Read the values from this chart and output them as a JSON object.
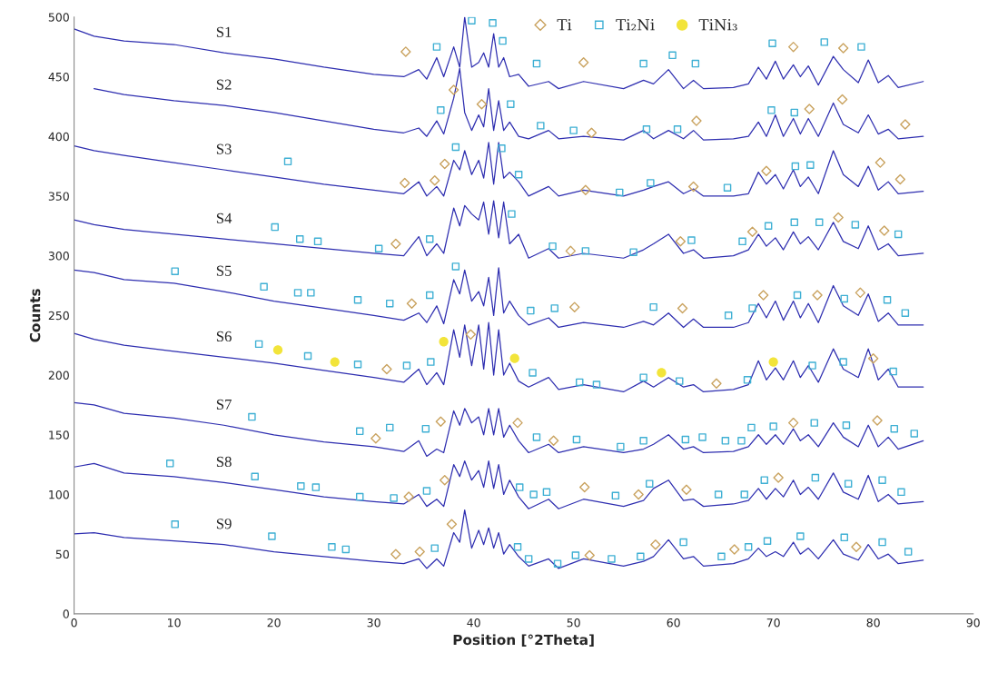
{
  "chart_data": {
    "type": "line",
    "xlabel": "Position [°2Theta]",
    "ylabel": "Counts",
    "xlim": [
      0,
      90
    ],
    "xticks": [
      0,
      10,
      20,
      30,
      40,
      50,
      60,
      70,
      80,
      90
    ],
    "ylim": [
      0,
      500
    ],
    "yticks": [
      0,
      50,
      100,
      150,
      200,
      250,
      300,
      350,
      400,
      450,
      500
    ],
    "grid": false,
    "legend": "top",
    "x": [
      0,
      2,
      5,
      10,
      15,
      20,
      25,
      30,
      33,
      34.5,
      35.3,
      36.3,
      37,
      38,
      38.6,
      39.1,
      39.8,
      40.5,
      41,
      41.5,
      42,
      42.5,
      43,
      43.6,
      44.5,
      45.5,
      47.5,
      48.5,
      51,
      55,
      57,
      58,
      59.5,
      61,
      62,
      63,
      66,
      67.5,
      68.5,
      69.3,
      70.2,
      71,
      72,
      72.7,
      73.5,
      74.5,
      76,
      77,
      78.5,
      79.5,
      80.5,
      81.5,
      82.5,
      85
    ],
    "series": [
      {
        "name": "S1",
        "color": "#2e2eb0",
        "values": [
          490,
          484,
          480,
          477,
          470,
          465,
          458,
          452,
          450,
          456,
          448,
          466,
          450,
          475,
          458,
          500,
          458,
          462,
          470,
          458,
          486,
          458,
          466,
          450,
          452,
          442,
          446,
          440,
          446,
          440,
          447,
          444,
          456,
          440,
          447,
          440,
          441,
          444,
          458,
          448,
          463,
          448,
          460,
          450,
          459,
          443,
          467,
          456,
          445,
          464,
          445,
          451,
          441,
          446
        ]
      },
      {
        "name": "S2",
        "color": "#2e2eb0",
        "values": [
          null,
          440,
          435,
          430,
          426,
          420,
          413,
          406,
          403,
          407,
          400,
          413,
          402,
          432,
          457,
          420,
          405,
          418,
          408,
          440,
          405,
          430,
          405,
          412,
          400,
          398,
          405,
          398,
          400,
          397,
          405,
          398,
          405,
          398,
          405,
          397,
          398,
          400,
          412,
          400,
          418,
          400,
          415,
          402,
          415,
          400,
          428,
          410,
          403,
          418,
          402,
          406,
          398,
          400
        ]
      },
      {
        "name": "S3",
        "color": "#2e2eb0",
        "values": [
          392,
          388,
          384,
          378,
          372,
          366,
          360,
          355,
          352,
          362,
          350,
          358,
          350,
          380,
          372,
          388,
          368,
          380,
          365,
          395,
          360,
          395,
          365,
          370,
          362,
          350,
          358,
          350,
          355,
          350,
          355,
          358,
          362,
          352,
          356,
          350,
          350,
          352,
          370,
          360,
          368,
          356,
          372,
          358,
          366,
          352,
          388,
          368,
          358,
          375,
          355,
          362,
          352,
          354
        ]
      },
      {
        "name": "S4",
        "color": "#2e2eb0",
        "values": [
          330,
          326,
          322,
          318,
          314,
          310,
          306,
          302,
          300,
          316,
          300,
          310,
          302,
          340,
          325,
          342,
          335,
          330,
          345,
          318,
          346,
          315,
          345,
          310,
          318,
          298,
          306,
          298,
          302,
          298,
          305,
          310,
          318,
          302,
          305,
          298,
          300,
          305,
          318,
          308,
          315,
          305,
          320,
          310,
          316,
          305,
          328,
          312,
          306,
          325,
          305,
          310,
          300,
          302
        ]
      },
      {
        "name": "S5",
        "color": "#2e2eb0",
        "values": [
          288,
          286,
          280,
          277,
          270,
          262,
          256,
          250,
          246,
          252,
          244,
          258,
          243,
          280,
          268,
          288,
          262,
          270,
          258,
          282,
          250,
          290,
          252,
          262,
          250,
          242,
          248,
          240,
          244,
          240,
          245,
          242,
          252,
          240,
          247,
          240,
          240,
          244,
          260,
          248,
          262,
          246,
          262,
          248,
          260,
          244,
          275,
          258,
          250,
          268,
          245,
          252,
          242,
          242
        ]
      },
      {
        "name": "S6",
        "color": "#2e2eb0",
        "values": [
          235,
          230,
          225,
          220,
          215,
          210,
          204,
          198,
          194,
          205,
          192,
          202,
          192,
          238,
          215,
          242,
          208,
          242,
          205,
          244,
          200,
          238,
          200,
          210,
          195,
          190,
          198,
          188,
          192,
          186,
          195,
          190,
          198,
          190,
          192,
          186,
          188,
          192,
          212,
          196,
          206,
          196,
          212,
          198,
          208,
          194,
          222,
          205,
          198,
          222,
          196,
          205,
          190,
          190
        ]
      },
      {
        "name": "S7",
        "color": "#2e2eb0",
        "values": [
          177,
          175,
          168,
          164,
          158,
          150,
          144,
          140,
          136,
          145,
          132,
          138,
          135,
          170,
          158,
          172,
          160,
          165,
          150,
          172,
          150,
          172,
          148,
          158,
          145,
          135,
          142,
          135,
          140,
          135,
          138,
          142,
          150,
          138,
          140,
          135,
          136,
          140,
          150,
          142,
          150,
          142,
          155,
          145,
          150,
          140,
          160,
          148,
          140,
          158,
          140,
          148,
          138,
          145
        ]
      },
      {
        "name": "S8",
        "color": "#2e2eb0",
        "values": [
          123,
          126,
          118,
          115,
          110,
          104,
          98,
          94,
          92,
          100,
          90,
          96,
          90,
          125,
          115,
          128,
          112,
          120,
          106,
          128,
          105,
          125,
          100,
          112,
          98,
          88,
          96,
          88,
          96,
          90,
          95,
          105,
          112,
          95,
          96,
          90,
          92,
          95,
          105,
          96,
          105,
          98,
          112,
          100,
          106,
          96,
          118,
          102,
          96,
          116,
          94,
          100,
          92,
          94
        ]
      },
      {
        "name": "S9",
        "color": "#2e2eb0",
        "values": [
          67,
          68,
          64,
          61,
          58,
          52,
          48,
          44,
          42,
          46,
          38,
          46,
          40,
          68,
          60,
          87,
          55,
          70,
          58,
          72,
          55,
          68,
          50,
          58,
          48,
          40,
          46,
          38,
          46,
          40,
          44,
          48,
          62,
          46,
          48,
          40,
          42,
          46,
          55,
          48,
          52,
          48,
          60,
          50,
          55,
          46,
          62,
          50,
          45,
          58,
          46,
          50,
          42,
          45
        ]
      },
      {
        "name": "Ti",
        "type": "scatter",
        "marker": "diamond",
        "color": "#c9a25e",
        "x": [
          33.2,
          38.0,
          40.8,
          51.0,
          62.3,
          72.0,
          77.0,
          51.8,
          73.6,
          76.9,
          83.2,
          33.1,
          36.1,
          37.1,
          51.2,
          62.0,
          69.3,
          80.7,
          82.7,
          32.2,
          49.7,
          60.7,
          67.9,
          76.5,
          81.1,
          33.8,
          39.7,
          50.1,
          60.9,
          69.0,
          74.4,
          78.7,
          31.3,
          64.3,
          80.0,
          30.2,
          36.7,
          44.4,
          48.0,
          72.0,
          80.4,
          33.5,
          37.1,
          51.1,
          56.5,
          61.3,
          70.5,
          32.2,
          34.6,
          37.8,
          51.6,
          58.2,
          66.1,
          78.3
        ],
        "values": [
          471,
          439,
          427,
          462,
          413,
          475,
          474,
          403,
          423,
          431,
          410,
          361,
          363,
          377,
          355,
          358,
          371,
          378,
          364,
          310,
          304,
          312,
          320,
          332,
          321,
          260,
          234,
          257,
          256,
          267,
          267,
          269,
          205,
          193,
          214,
          147,
          161,
          160,
          145,
          160,
          162,
          98,
          112,
          106,
          100,
          104,
          114,
          50,
          52,
          75,
          49,
          58,
          54,
          56
        ]
      },
      {
        "name": "Ti₂Ni",
        "type": "scatter",
        "marker": "square",
        "color": "#3fb0d4",
        "x": [
          36.3,
          39.8,
          41.9,
          42.9,
          46.3,
          57.0,
          59.9,
          62.2,
          69.9,
          75.1,
          78.8,
          36.7,
          43.7,
          46.7,
          50.0,
          57.3,
          60.4,
          69.8,
          72.1,
          21.4,
          38.2,
          42.8,
          44.5,
          54.6,
          57.7,
          65.4,
          72.2,
          73.7,
          20.1,
          22.6,
          24.4,
          30.5,
          35.6,
          43.8,
          47.9,
          51.2,
          56.0,
          61.8,
          66.9,
          69.5,
          72.1,
          74.6,
          78.2,
          82.5,
          10.1,
          19.0,
          22.4,
          23.7,
          28.4,
          31.6,
          35.6,
          38.2,
          45.7,
          48.1,
          58.0,
          65.5,
          67.9,
          72.4,
          77.1,
          81.4,
          83.2,
          18.5,
          23.4,
          28.4,
          33.3,
          35.7,
          45.9,
          50.6,
          52.3,
          57.0,
          60.6,
          67.4,
          73.9,
          77.0,
          82.0,
          17.8,
          28.6,
          31.6,
          35.2,
          46.3,
          50.3,
          54.7,
          57.0,
          61.2,
          62.9,
          65.2,
          66.8,
          67.8,
          70.0,
          74.1,
          77.3,
          82.1,
          84.1,
          9.6,
          18.1,
          22.7,
          24.2,
          28.6,
          32.0,
          35.3,
          44.6,
          46.0,
          47.3,
          54.2,
          57.6,
          64.5,
          67.1,
          69.1,
          74.2,
          77.5,
          80.9,
          82.8,
          10.1,
          19.8,
          25.8,
          27.2,
          36.1,
          44.4,
          45.5,
          48.4,
          50.2,
          53.8,
          56.7,
          61.0,
          64.8,
          67.5,
          69.4,
          72.7,
          77.1,
          80.9,
          83.5
        ],
        "values": [
          475,
          497,
          495,
          480,
          461,
          461,
          468,
          461,
          478,
          479,
          475,
          422,
          427,
          409,
          405,
          406,
          406,
          422,
          420,
          379,
          391,
          390,
          368,
          353,
          361,
          357,
          375,
          376,
          324,
          314,
          312,
          306,
          314,
          335,
          308,
          304,
          303,
          313,
          312,
          325,
          328,
          328,
          326,
          318,
          287,
          274,
          269,
          269,
          263,
          260,
          267,
          291,
          254,
          256,
          257,
          250,
          256,
          267,
          264,
          263,
          252,
          226,
          216,
          209,
          208,
          211,
          202,
          194,
          192,
          198,
          195,
          196,
          208,
          211,
          203,
          165,
          153,
          156,
          155,
          148,
          146,
          140,
          145,
          146,
          148,
          145,
          145,
          156,
          157,
          160,
          158,
          155,
          151,
          126,
          115,
          107,
          106,
          98,
          97,
          103,
          106,
          100,
          102,
          99,
          109,
          100,
          100,
          112,
          114,
          109,
          112,
          102,
          75,
          65,
          56,
          54,
          55,
          56,
          46,
          42,
          49,
          46,
          48,
          60,
          48,
          56,
          61,
          65,
          64,
          60,
          52
        ]
      },
      {
        "name": "TiNi₃",
        "type": "scatter",
        "marker": "circle",
        "color": "#f2e43a",
        "x": [
          20.4,
          26.1,
          37.0,
          44.1,
          58.8,
          70.0
        ],
        "values": [
          221,
          211,
          228,
          214,
          202,
          211
        ]
      }
    ]
  }
}
